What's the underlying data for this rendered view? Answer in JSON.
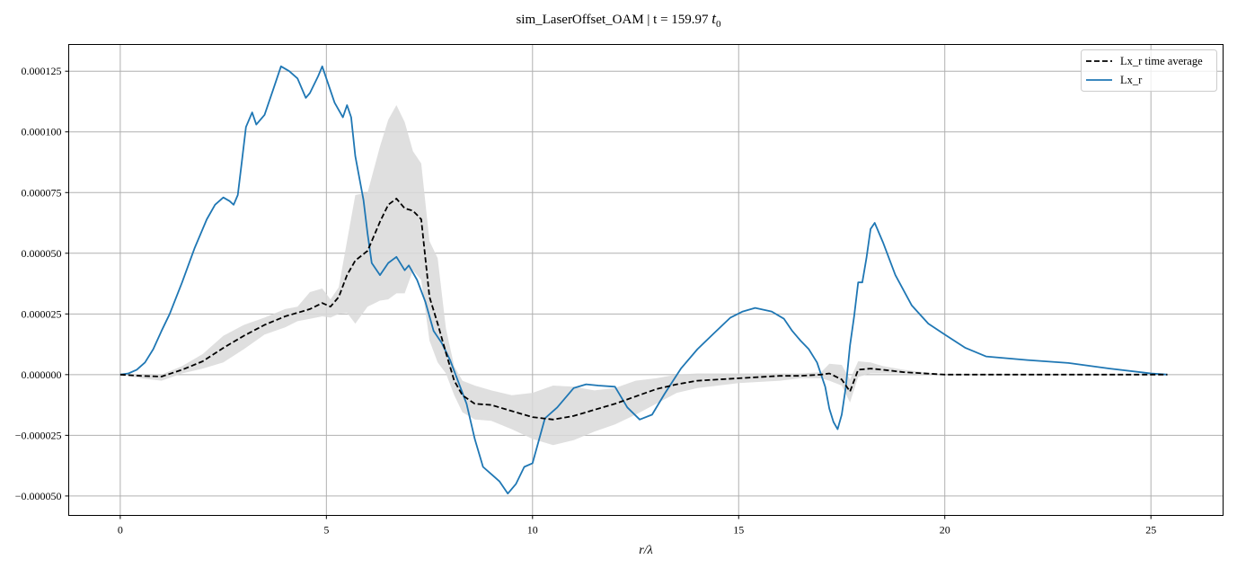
{
  "chart_data": {
    "type": "line",
    "title": "sim_LaserOffset_OAM | t = 159.97 ",
    "title_math": "t",
    "title_math_sub": "0",
    "xlabel": "r/λ",
    "ylabel": "",
    "xlim": [
      -1.25,
      26.75
    ],
    "ylim": [
      -5.8e-05,
      0.000136
    ],
    "x_ticks": [
      0,
      5,
      10,
      15,
      20,
      25
    ],
    "x_tick_labels": [
      "0",
      "5",
      "10",
      "15",
      "20",
      "25"
    ],
    "y_ticks": [
      -5e-05,
      -2.5e-05,
      0,
      2.5e-05,
      5e-05,
      7.5e-05,
      0.0001,
      0.000125
    ],
    "y_tick_labels": [
      "−0.000050",
      "−0.000025",
      "0.000000",
      "0.000025",
      "0.000050",
      "0.000075",
      "0.000100",
      "0.000125"
    ],
    "grid": true,
    "legend": {
      "position": "top-right",
      "entries": [
        "Lx_r time average",
        "Lx_r"
      ]
    },
    "colors": {
      "time_average": "#000000",
      "instant": "#1f77b4",
      "band": "#d9d9d9",
      "grid": "#b0b0b0"
    },
    "series": [
      {
        "name": "Lx_r time average",
        "style": "dashed",
        "x": [
          0,
          0.5,
          1.0,
          1.5,
          2.0,
          2.5,
          3.0,
          3.5,
          4.0,
          4.3,
          4.6,
          4.9,
          5.1,
          5.3,
          5.5,
          5.7,
          6.0,
          6.3,
          6.5,
          6.7,
          6.9,
          7.1,
          7.3,
          7.5,
          7.7,
          7.9,
          8.1,
          8.3,
          8.6,
          9.0,
          9.5,
          10.0,
          10.5,
          11.0,
          11.5,
          12.0,
          12.5,
          13.0,
          13.5,
          14.0,
          15.0,
          16.0,
          16.5,
          17.0,
          17.2,
          17.5,
          17.7,
          17.9,
          18.2,
          18.5,
          19.0,
          20.0,
          22.0,
          24.0,
          25.4
        ],
        "y": [
          0,
          -5e-07,
          -8e-07,
          2e-06,
          5.5e-06,
          1.1e-05,
          1.6e-05,
          2.05e-05,
          2.4e-05,
          2.55e-05,
          2.7e-05,
          2.95e-05,
          2.8e-05,
          3.2e-05,
          4.1e-05,
          4.7e-05,
          5.1e-05,
          6.3e-05,
          7e-05,
          7.25e-05,
          6.85e-05,
          6.75e-05,
          6.4e-05,
          3.2e-05,
          2.1e-05,
          9e-06,
          -2.5e-06,
          -8.5e-06,
          -1.2e-05,
          -1.25e-05,
          -1.5e-05,
          -1.75e-05,
          -1.85e-05,
          -1.7e-05,
          -1.45e-05,
          -1.2e-05,
          -9e-06,
          -6e-06,
          -4e-06,
          -2.5e-06,
          -1.5e-06,
          -5e-07,
          -5e-07,
          0,
          5e-07,
          -2e-06,
          -7e-06,
          2e-06,
          2.5e-06,
          2e-06,
          1e-06,
          0,
          0,
          0,
          0
        ]
      },
      {
        "name": "Lx_r",
        "style": "solid",
        "x": [
          0,
          0.2,
          0.4,
          0.6,
          0.8,
          1.0,
          1.2,
          1.5,
          1.8,
          2.1,
          2.3,
          2.5,
          2.65,
          2.75,
          2.85,
          2.95,
          3.05,
          3.2,
          3.3,
          3.5,
          3.7,
          3.9,
          4.1,
          4.3,
          4.5,
          4.6,
          4.8,
          4.9,
          5.0,
          5.2,
          5.4,
          5.5,
          5.6,
          5.7,
          5.9,
          6.0,
          6.1,
          6.3,
          6.5,
          6.7,
          6.9,
          7.0,
          7.2,
          7.4,
          7.6,
          7.8,
          8.0,
          8.2,
          8.4,
          8.6,
          8.8,
          9.0,
          9.2,
          9.4,
          9.6,
          9.8,
          10.0,
          10.3,
          10.6,
          11.0,
          11.3,
          11.6,
          12.0,
          12.3,
          12.6,
          12.9,
          13.2,
          13.6,
          14.0,
          14.4,
          14.8,
          15.1,
          15.4,
          15.8,
          16.1,
          16.3,
          16.5,
          16.7,
          16.9,
          17.1,
          17.2,
          17.3,
          17.4,
          17.5,
          17.6,
          17.7,
          17.8,
          17.9,
          18.0,
          18.1,
          18.2,
          18.3,
          18.5,
          18.8,
          19.2,
          19.6,
          20.0,
          20.5,
          21.0,
          22.0,
          23.0,
          24.0,
          25.0,
          25.4
        ],
        "y": [
          0,
          5e-07,
          2e-06,
          5e-06,
          1.05e-05,
          1.8e-05,
          2.5e-05,
          3.8e-05,
          5.2e-05,
          6.4e-05,
          7e-05,
          7.3e-05,
          7.15e-05,
          7e-05,
          7.4e-05,
          8.8e-05,
          0.000102,
          0.000108,
          0.000103,
          0.000107,
          0.000117,
          0.000127,
          0.000125,
          0.000122,
          0.000114,
          0.000116,
          0.000123,
          0.000127,
          0.000122,
          0.000112,
          0.000106,
          0.000111,
          0.000106,
          9e-05,
          7.2e-05,
          5.8e-05,
          4.6e-05,
          4.1e-05,
          4.6e-05,
          4.85e-05,
          4.3e-05,
          4.5e-05,
          3.9e-05,
          3e-05,
          1.8e-05,
          1.3e-05,
          6e-06,
          -3e-06,
          -1.2e-05,
          -2.65e-05,
          -3.8e-05,
          -4.1e-05,
          -4.4e-05,
          -4.9e-05,
          -4.5e-05,
          -3.8e-05,
          -3.65e-05,
          -1.8e-05,
          -1.35e-05,
          -5.5e-06,
          -4e-06,
          -4.5e-06,
          -5e-06,
          -1.35e-05,
          -1.85e-05,
          -1.65e-05,
          -8e-06,
          2.5e-06,
          1.05e-05,
          1.7e-05,
          2.35e-05,
          2.6e-05,
          2.75e-05,
          2.6e-05,
          2.3e-05,
          1.8e-05,
          1.4e-05,
          1.05e-05,
          5e-06,
          -5e-06,
          -1.4e-05,
          -1.95e-05,
          -2.25e-05,
          -1.65e-05,
          -5e-06,
          1.2e-05,
          2.4e-05,
          3.8e-05,
          3.8e-05,
          4.8e-05,
          6e-05,
          6.25e-05,
          5.45e-05,
          4.1e-05,
          2.85e-05,
          2.1e-05,
          1.65e-05,
          1.1e-05,
          7.5e-06,
          6e-06,
          4.8e-06,
          2.5e-06,
          5e-07,
          0
        ]
      }
    ],
    "band": {
      "x": [
        0,
        0.5,
        1.0,
        1.5,
        2.0,
        2.5,
        3.0,
        3.5,
        4.0,
        4.3,
        4.6,
        4.9,
        5.1,
        5.3,
        5.5,
        5.7,
        6.0,
        6.3,
        6.5,
        6.7,
        6.9,
        7.1,
        7.3,
        7.5,
        7.7,
        7.9,
        8.1,
        8.3,
        8.6,
        9.0,
        9.5,
        10.0,
        10.5,
        11.0,
        11.5,
        12.0,
        12.5,
        13.0,
        13.5,
        14.0,
        15.0,
        16.0,
        16.5,
        17.0,
        17.2,
        17.5,
        17.7,
        17.9,
        18.2,
        18.5,
        19.0,
        20.0,
        22.0,
        24.0,
        25.4
      ],
      "upper": [
        0,
        0,
        0,
        3.5e-06,
        8.5e-06,
        1.6e-05,
        2.05e-05,
        2.35e-05,
        2.7e-05,
        2.8e-05,
        3.4e-05,
        3.55e-05,
        3.1e-05,
        3.6e-05,
        5.5e-05,
        7.4e-05,
        7.5e-05,
        9.4e-05,
        0.000105,
        0.000111,
        0.000104,
        9.2e-05,
        8.7e-05,
        5.5e-05,
        4.8e-05,
        1.9e-05,
        3.5e-06,
        -2.5e-06,
        -4.5e-06,
        -6.5e-06,
        -8.5e-06,
        -7.5e-06,
        -4.5e-06,
        -5e-06,
        -6.5e-06,
        -5.5e-06,
        -2.5e-06,
        -1.5e-06,
        0,
        5e-07,
        5e-07,
        5e-07,
        5e-07,
        1e-06,
        4.5e-06,
        4e-06,
        -2e-06,
        5.5e-06,
        5e-06,
        3.5e-06,
        2e-06,
        0,
        0,
        0,
        0
      ],
      "lower": [
        0,
        -1.5e-06,
        -2.5e-06,
        5e-07,
        2.5e-06,
        5e-06,
        1.05e-05,
        1.65e-05,
        1.95e-05,
        2.2e-05,
        2.3e-05,
        2.4e-05,
        2.35e-05,
        2.5e-05,
        2.55e-05,
        2.1e-05,
        2.8e-05,
        3.05e-05,
        3.1e-05,
        3.35e-05,
        3.35e-05,
        4.3e-05,
        3.9e-05,
        1.4e-05,
        5e-06,
        5e-07,
        -8.5e-06,
        -1.55e-05,
        -1.85e-05,
        -1.9e-05,
        -2.25e-05,
        -2.65e-05,
        -2.9e-05,
        -2.7e-05,
        -2.35e-05,
        -2.05e-05,
        -1.65e-05,
        -1.2e-05,
        -7.5e-06,
        -5.5e-06,
        -3.5e-06,
        -2.5e-06,
        -1.5e-06,
        -1.5e-06,
        -2.5e-06,
        -4.5e-06,
        -1.15e-05,
        -1e-06,
        5e-07,
        5e-07,
        5e-07,
        0,
        0,
        0,
        0
      ]
    }
  }
}
